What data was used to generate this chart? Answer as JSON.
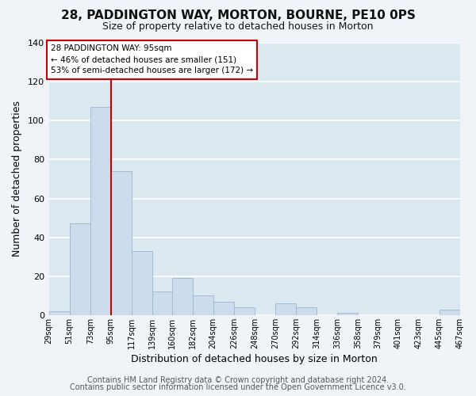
{
  "title": "28, PADDINGTON WAY, MORTON, BOURNE, PE10 0PS",
  "subtitle": "Size of property relative to detached houses in Morton",
  "xlabel": "Distribution of detached houses by size in Morton",
  "ylabel": "Number of detached properties",
  "bar_color": "#ccdcec",
  "bar_edge_color": "#9ab8d0",
  "vline_x": 95,
  "vline_color": "#cc0000",
  "annotation_line1": "28 PADDINGTON WAY: 95sqm",
  "annotation_line2": "← 46% of detached houses are smaller (151)",
  "annotation_line3": "53% of semi-detached houses are larger (172) →",
  "annotation_box_facecolor": "#ffffff",
  "annotation_box_edgecolor": "#cc0000",
  "bin_edges": [
    29,
    51,
    73,
    95,
    117,
    139,
    160,
    182,
    204,
    226,
    248,
    270,
    292,
    314,
    336,
    358,
    379,
    401,
    423,
    445,
    467
  ],
  "bin_labels": [
    "29sqm",
    "51sqm",
    "73sqm",
    "95sqm",
    "117sqm",
    "139sqm",
    "160sqm",
    "182sqm",
    "204sqm",
    "226sqm",
    "248sqm",
    "270sqm",
    "292sqm",
    "314sqm",
    "336sqm",
    "358sqm",
    "379sqm",
    "401sqm",
    "423sqm",
    "445sqm",
    "467sqm"
  ],
  "counts": [
    2,
    47,
    107,
    74,
    33,
    12,
    19,
    10,
    7,
    4,
    0,
    6,
    4,
    0,
    1,
    0,
    0,
    0,
    0,
    3
  ],
  "ylim": [
    0,
    140
  ],
  "yticks": [
    0,
    20,
    40,
    60,
    80,
    100,
    120,
    140
  ],
  "footer1": "Contains HM Land Registry data © Crown copyright and database right 2024.",
  "footer2": "Contains public sector information licensed under the Open Government Licence v3.0.",
  "plot_bg_color": "#dce8f0",
  "fig_bg_color": "#f0f4f8",
  "grid_color": "#ffffff",
  "title_fontsize": 11,
  "subtitle_fontsize": 9,
  "footer_fontsize": 7
}
